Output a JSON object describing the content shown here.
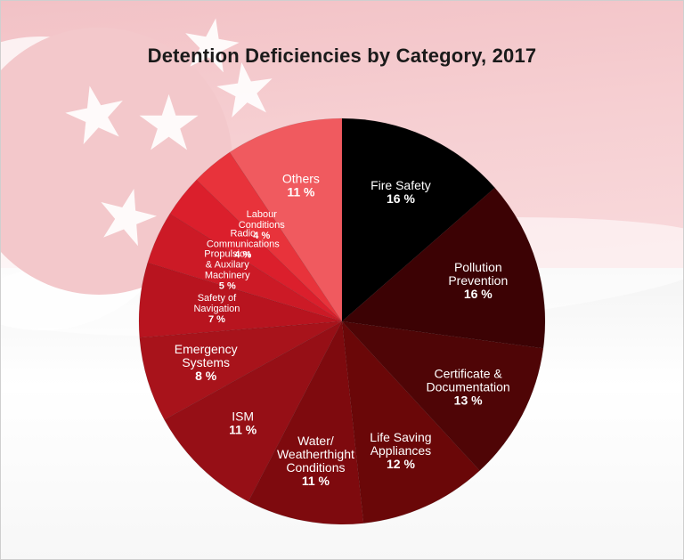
{
  "chart_data": {
    "type": "pie",
    "title": "Detention Deficiencies by Category, 2017",
    "start_angle_deg": 0,
    "direction": "clockwise",
    "slices": [
      {
        "label_lines": [
          "Fire Safety"
        ],
        "value_label": "16 %",
        "value": 16,
        "color": "#000000",
        "label_color": "#ffffff"
      },
      {
        "label_lines": [
          "Pollution",
          "Prevention"
        ],
        "value_label": "16 %",
        "value": 16,
        "color": "#3c0204",
        "label_color": "#ffffff"
      },
      {
        "label_lines": [
          "Certificate &",
          "Documentation"
        ],
        "value_label": "13 %",
        "value": 13,
        "color": "#4f0506",
        "label_color": "#ffffff"
      },
      {
        "label_lines": [
          "Life Saving",
          "Appliances"
        ],
        "value_label": "12 %",
        "value": 12,
        "color": "#6a0708",
        "label_color": "#ffffff"
      },
      {
        "label_lines": [
          "Water/",
          "Weatherthight",
          "Conditions"
        ],
        "value_label": "11 %",
        "value": 11,
        "color": "#7e0a0e",
        "label_color": "#ffffff"
      },
      {
        "label_lines": [
          "ISM"
        ],
        "value_label": "11 %",
        "value": 11,
        "color": "#960f16",
        "label_color": "#ffffff"
      },
      {
        "label_lines": [
          "Emergency",
          "Systems"
        ],
        "value_label": "8 %",
        "value": 8,
        "color": "#a8131b",
        "label_color": "#ffffff"
      },
      {
        "label_lines": [
          "Safety of",
          "Navigation"
        ],
        "value_label": "7 %",
        "value": 7,
        "color": "#b8141f",
        "label_color": "#ffffff"
      },
      {
        "label_lines": [
          "Propulsion",
          "& Auxilary",
          "Machinery"
        ],
        "value_label": "5 %",
        "value": 5,
        "color": "#cc1a26",
        "label_color": "#ffffff"
      },
      {
        "label_lines": [
          "Radio",
          "Communications"
        ],
        "value_label": "4 %",
        "value": 4,
        "color": "#db1f2c",
        "label_color": "#ffffff"
      },
      {
        "label_lines": [
          "Labour",
          "Conditions"
        ],
        "value_label": "4 %",
        "value": 4,
        "color": "#e8333b",
        "label_color": "#ffffff"
      },
      {
        "label_lines": [
          "Others"
        ],
        "value_label": "11 %",
        "value": 11,
        "color": "#f05a5f",
        "label_color": "#ffffff"
      }
    ]
  }
}
